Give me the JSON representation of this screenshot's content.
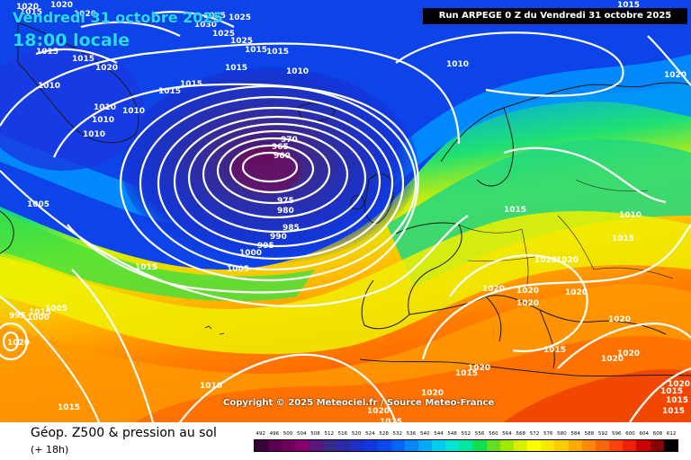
{
  "header": {
    "date_line1": "Vendredi 31 octobre 2025",
    "date_line2": "18:00 locale",
    "run_info": "Run ARPEGE 0 Z du Vendredi 31 octobre 2025"
  },
  "copyright": "Copyright © 2025 Meteociel.fr / Source Meteo-France",
  "footer": {
    "title": "Géop. Z500 & pression au sol",
    "subtitle": "(+ 18h)"
  },
  "legend": {
    "levels": [
      492,
      496,
      500,
      504,
      508,
      512,
      516,
      520,
      524,
      528,
      532,
      536,
      540,
      544,
      548,
      552,
      556,
      560,
      564,
      568,
      572,
      576,
      580,
      584,
      588,
      592,
      596,
      600,
      604,
      608,
      612
    ],
    "colors": [
      "#3a0038",
      "#5a0050",
      "#70005e",
      "#860070",
      "#5a1878",
      "#3a2a8c",
      "#2a2aa6",
      "#1e30c8",
      "#1238dc",
      "#0a48f0",
      "#0064ff",
      "#0088ff",
      "#00aaff",
      "#00ccf0",
      "#00e4d4",
      "#00e8a0",
      "#10e050",
      "#60e020",
      "#a0e800",
      "#d8f000",
      "#ffff00",
      "#ffe600",
      "#ffcc00",
      "#ffaa00",
      "#ff8800",
      "#ff6600",
      "#ff4400",
      "#ee2200",
      "#cc0000",
      "#880000",
      "#000000"
    ]
  },
  "isobar_labels": [
    "1015",
    "1020",
    "1020",
    "1025",
    "1025",
    "1025",
    "1015",
    "1015",
    "1015",
    "1015",
    "1030",
    "1025",
    "1020",
    "1015",
    "1010",
    "1010",
    "1010",
    "1010",
    "1020",
    "1015",
    "1015",
    "1010",
    "1010",
    "1005",
    "1005",
    "970",
    "965",
    "960",
    "975",
    "980",
    "985",
    "990",
    "995",
    "1000",
    "1005",
    "1015",
    "995",
    "1000",
    "1020",
    "1010",
    "1010",
    "1015",
    "1015",
    "1020",
    "1020",
    "1020",
    "1020",
    "1020",
    "1020",
    "1015",
    "1020",
    "1020",
    "1020",
    "1020",
    "1015",
    "1015",
    "1010",
    "1015",
    "1020",
    "1015",
    "1020",
    "1015",
    "1015",
    "1020",
    "1015",
    "1020",
    "1015"
  ]
}
